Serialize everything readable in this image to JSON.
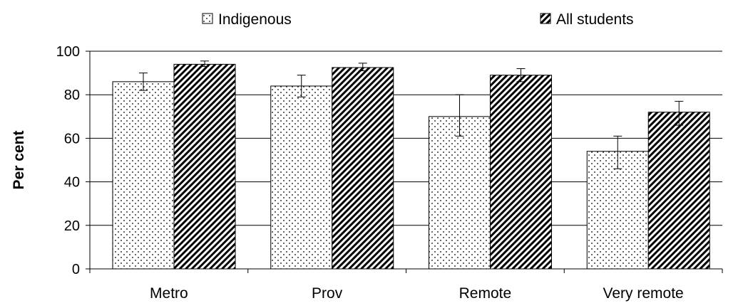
{
  "chart_data": {
    "type": "bar",
    "categories": [
      "Metro",
      "Prov",
      "Remote",
      "Very remote"
    ],
    "series": [
      {
        "name": "Indigenous",
        "values": [
          86,
          84,
          70,
          54
        ],
        "err_low": [
          82,
          79,
          61,
          46
        ],
        "err_high": [
          90,
          89,
          80,
          61
        ],
        "pattern": "dots"
      },
      {
        "name": "All students",
        "values": [
          94,
          92.5,
          89,
          72
        ],
        "err_low": [
          93,
          91,
          86,
          66
        ],
        "err_high": [
          95.5,
          94.5,
          92,
          77
        ],
        "pattern": "diagonal-stripes"
      }
    ],
    "ylabel": "Per cent",
    "xlabel": "",
    "ylim": [
      0,
      100
    ],
    "yticks": [
      0,
      20,
      40,
      60,
      80,
      100
    ],
    "grid": true,
    "legend_position": "top",
    "error_bars": true
  }
}
